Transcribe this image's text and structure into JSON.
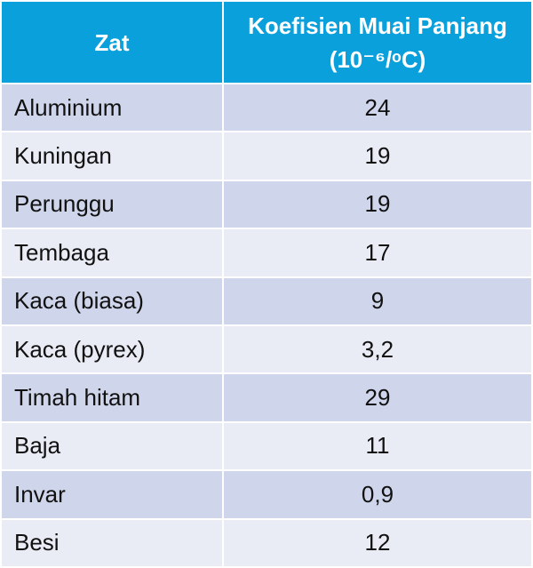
{
  "table": {
    "header": [
      "Zat",
      "Koefisien Muai Panjang (10⁻⁶/ᵒC)"
    ],
    "rows": [
      [
        "Aluminium",
        "24"
      ],
      [
        "Kuningan",
        "19"
      ],
      [
        "Perunggu",
        "19"
      ],
      [
        "Tembaga",
        "17"
      ],
      [
        "Kaca (biasa)",
        "9"
      ],
      [
        "Kaca (pyrex)",
        "3,2"
      ],
      [
        "Timah hitam",
        "29"
      ],
      [
        "Baja",
        "11"
      ],
      [
        "Invar",
        "0,9"
      ],
      [
        "Besi",
        "12"
      ]
    ]
  }
}
